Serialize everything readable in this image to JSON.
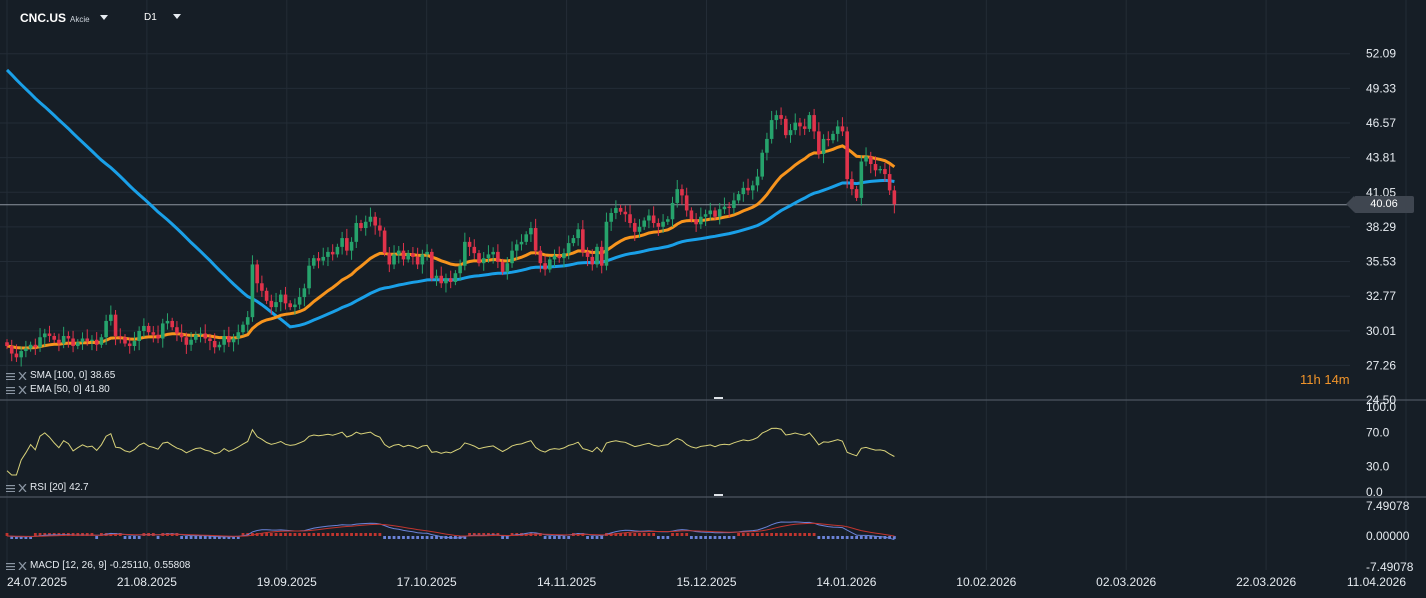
{
  "header": {
    "symbol": "CNC.US",
    "instrument_type": "Akcie",
    "timeframe": "D1"
  },
  "colors": {
    "background": "#161e26",
    "grid": "#232c36",
    "bull": "#26a36c",
    "bear": "#e0334b",
    "sma": "#1aa0e8",
    "ema": "#f7941d",
    "rsi": "#d8d27a",
    "macd_line": "#6b83d8",
    "macd_signal": "#c1352f",
    "countdown": "#f0942a"
  },
  "price_axis": {
    "ticks": [
      "52.09",
      "49.33",
      "46.57",
      "43.81",
      "41.05",
      "38.29",
      "35.53",
      "32.77",
      "30.01",
      "27.26",
      "24.50"
    ],
    "current_price": "40.06"
  },
  "time_axis": {
    "labels": [
      "24.07.2025",
      "21.08.2025",
      "19.09.2025",
      "17.10.2025",
      "14.11.2025",
      "15.12.2025",
      "14.01.2026",
      "10.02.2026",
      "02.03.2026",
      "22.03.2026",
      "11.04.2026"
    ]
  },
  "countdown": "11h 14m",
  "indicators": {
    "sma_label": "SMA [100, 0]",
    "sma_value": "38.65",
    "ema_label": "EMA [50, 0]",
    "ema_value": "41.80",
    "rsi_label": "RSI [20]",
    "rsi_value": "42.7",
    "rsi_axis": [
      "100.0",
      "70.0",
      "30.0",
      "0.0"
    ],
    "macd_label": "MACD [12, 26, 9]",
    "macd_value_1": "-0.25110,",
    "macd_value_2": "0.55808",
    "macd_axis": [
      "7.49078",
      "0.00000",
      "-7.49078"
    ]
  },
  "chart_data": {
    "type": "candlestick",
    "y_range": [
      24.5,
      53.5
    ],
    "closes": [
      28.8,
      28.2,
      27.9,
      28.4,
      28.6,
      28.9,
      28.7,
      29.5,
      29.8,
      29.6,
      29.3,
      29.0,
      29.6,
      29.4,
      28.8,
      29.1,
      29.4,
      29.2,
      29.3,
      28.9,
      29.5,
      30.8,
      31.3,
      29.6,
      29.5,
      29.0,
      28.8,
      29.2,
      30.0,
      30.4,
      29.9,
      29.7,
      29.4,
      30.6,
      30.8,
      30.3,
      29.8,
      29.5,
      28.9,
      29.3,
      29.7,
      29.8,
      29.4,
      29.2,
      28.7,
      28.9,
      29.6,
      29.1,
      29.4,
      29.9,
      30.5,
      31.1,
      35.3,
      33.8,
      33.2,
      32.4,
      31.9,
      32.3,
      32.9,
      32.2,
      31.9,
      32.1,
      32.7,
      33.4,
      35.2,
      35.8,
      35.6,
      35.9,
      36.3,
      36.1,
      36.7,
      37.4,
      36.4,
      37.1,
      38.6,
      38.2,
      38.7,
      39.1,
      38.4,
      38.0,
      36.2,
      35.3,
      36.1,
      36.4,
      35.7,
      36.2,
      35.9,
      35.3,
      36.1,
      36.3,
      34.2,
      34.4,
      33.8,
      34.2,
      33.9,
      34.6,
      35.2,
      37.1,
      36.7,
      36.2,
      35.4,
      35.8,
      36.1,
      36.3,
      35.5,
      34.7,
      35.4,
      36.4,
      36.9,
      37.1,
      37.7,
      38.2,
      36.4,
      35.4,
      34.9,
      35.7,
      36.0,
      35.8,
      36.2,
      37.0,
      37.4,
      38.1,
      36.3,
      35.9,
      35.3,
      36.7,
      35.2,
      38.7,
      39.4,
      39.8,
      39.5,
      39.3,
      38.6,
      37.9,
      38.3,
      38.8,
      39.2,
      38.6,
      38.3,
      38.7,
      38.9,
      40.2,
      41.3,
      40.8,
      39.6,
      38.9,
      38.5,
      39.1,
      39.3,
      39.6,
      39.1,
      39.7,
      39.9,
      39.8,
      40.4,
      40.9,
      41.4,
      41.2,
      41.6,
      42.3,
      44.2,
      45.3,
      46.8,
      47.2,
      46.9,
      45.6,
      46.0,
      46.6,
      46.3,
      46.1,
      47.2,
      45.9,
      44.1,
      45.3,
      45.2,
      45.7,
      46.3,
      45.9,
      42.1,
      41.3,
      40.6,
      43.5,
      43.9,
      43.3,
      42.8,
      42.9,
      42.5,
      41.2,
      40.1
    ]
  }
}
